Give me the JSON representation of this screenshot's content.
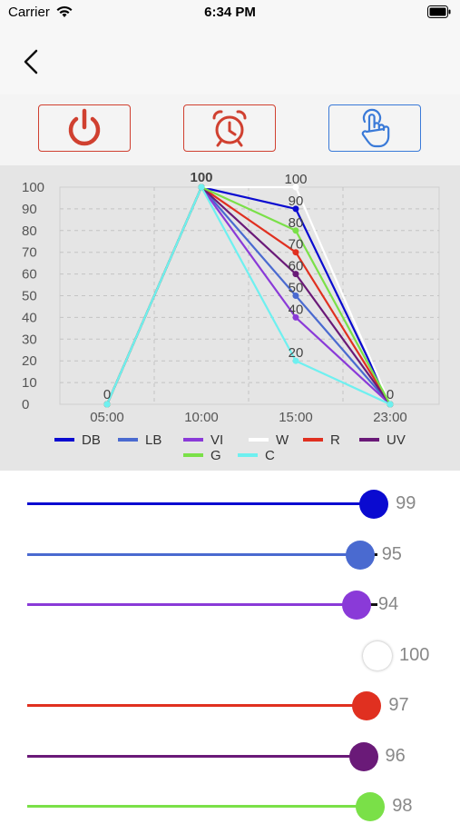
{
  "status_bar": {
    "carrier": "Carrier",
    "time": "6:34 PM"
  },
  "icons": {
    "wifi": "wifi-icon",
    "battery": "battery-icon",
    "back": "chevron-left-icon",
    "power": "power-icon",
    "alarm": "alarm-clock-icon",
    "touch": "touch-hand-icon"
  },
  "mode_buttons": [
    {
      "name": "power",
      "active": false,
      "color": "#d04030"
    },
    {
      "name": "timer",
      "active": false,
      "color": "#d04030"
    },
    {
      "name": "manual",
      "active": true,
      "color": "#3a7ad8"
    }
  ],
  "chart_data": {
    "type": "line",
    "x": [
      "05:00",
      "10:00",
      "15:00",
      "23:00"
    ],
    "ylim": [
      0,
      100
    ],
    "y_ticks": [
      "0",
      "10",
      "20",
      "30",
      "40",
      "50",
      "60",
      "70",
      "80",
      "90",
      "100"
    ],
    "grid": true,
    "legend_position": "bottom",
    "series": [
      {
        "name": "DB",
        "color": "#0a0ad0",
        "values": [
          0,
          100,
          90,
          0
        ]
      },
      {
        "name": "LB",
        "color": "#4a6ad0",
        "values": [
          0,
          100,
          50,
          0
        ]
      },
      {
        "name": "VI",
        "color": "#8a3ad8",
        "values": [
          0,
          100,
          40,
          0
        ]
      },
      {
        "name": "W",
        "color": "#ffffff",
        "values": [
          0,
          100,
          100,
          0
        ]
      },
      {
        "name": "R",
        "color": "#e03020",
        "values": [
          0,
          100,
          70,
          0
        ]
      },
      {
        "name": "UV",
        "color": "#6a1a78",
        "values": [
          0,
          100,
          60,
          0
        ]
      },
      {
        "name": "G",
        "color": "#7ae048",
        "values": [
          0,
          100,
          80,
          0
        ]
      },
      {
        "name": "C",
        "color": "#6ef0f0",
        "values": [
          0,
          100,
          20,
          0
        ]
      }
    ],
    "data_labels": [
      {
        "x_index": 0,
        "value": "0"
      },
      {
        "x_index": 1,
        "value": "100"
      },
      {
        "x_index": 2,
        "value": "100"
      },
      {
        "x_index": 2,
        "value": "90"
      },
      {
        "x_index": 2,
        "value": "80"
      },
      {
        "x_index": 2,
        "value": "70"
      },
      {
        "x_index": 2,
        "value": "60"
      },
      {
        "x_index": 2,
        "value": "50"
      },
      {
        "x_index": 2,
        "value": "40"
      },
      {
        "x_index": 2,
        "value": "20"
      },
      {
        "x_index": 3,
        "value": "0"
      }
    ]
  },
  "sliders": [
    {
      "name": "DB",
      "value": "99",
      "color": "#0a0ad0"
    },
    {
      "name": "LB",
      "value": "95",
      "color": "#4a6ad0"
    },
    {
      "name": "VI",
      "value": "94",
      "color": "#8a3ad8"
    },
    {
      "name": "W",
      "value": "100",
      "color": "#ffffff"
    },
    {
      "name": "R",
      "value": "97",
      "color": "#e03020"
    },
    {
      "name": "UV",
      "value": "96",
      "color": "#6a1a78"
    },
    {
      "name": "G",
      "value": "98",
      "color": "#7ae048"
    }
  ]
}
